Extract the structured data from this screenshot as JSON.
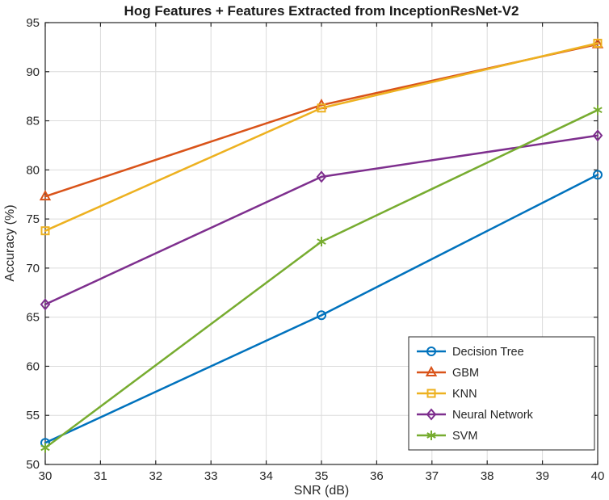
{
  "chart_data": {
    "type": "line",
    "title": "Hog Features + Features Extracted from InceptionResNet-V2",
    "xlabel": "SNR (dB)",
    "ylabel": "Accuracy (%)",
    "x": [
      30,
      35,
      40
    ],
    "series": [
      {
        "name": "Decision Tree",
        "color": "#0072BD",
        "marker": "circle",
        "values": [
          52.2,
          65.2,
          79.5
        ]
      },
      {
        "name": "GBM",
        "color": "#D95319",
        "marker": "triangle",
        "values": [
          77.3,
          86.6,
          92.8
        ]
      },
      {
        "name": "KNN",
        "color": "#EDB120",
        "marker": "square",
        "values": [
          73.8,
          86.3,
          92.9
        ]
      },
      {
        "name": "Neural Network",
        "color": "#7E2F8E",
        "marker": "diamond",
        "values": [
          66.3,
          79.3,
          83.5
        ]
      },
      {
        "name": "SVM",
        "color": "#77AC30",
        "marker": "asterisk",
        "values": [
          51.7,
          72.7,
          86.1
        ]
      }
    ],
    "xlim": [
      30,
      40
    ],
    "ylim": [
      50,
      95
    ],
    "xticks": [
      30,
      31,
      32,
      33,
      34,
      35,
      36,
      37,
      38,
      39,
      40
    ],
    "yticks": [
      50,
      55,
      60,
      65,
      70,
      75,
      80,
      85,
      90,
      95
    ],
    "grid": true,
    "legend_position": "bottom-right",
    "colors": {
      "grid": "#DBDBDB",
      "axis": "#262626",
      "legend_border": "#262626",
      "background": "#ffffff"
    }
  }
}
